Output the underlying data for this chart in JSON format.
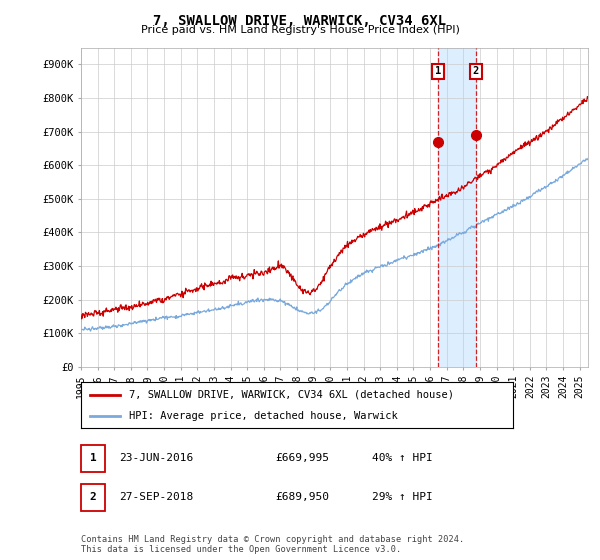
{
  "title": "7, SWALLOW DRIVE, WARWICK, CV34 6XL",
  "subtitle": "Price paid vs. HM Land Registry's House Price Index (HPI)",
  "ylabel_ticks": [
    "£0",
    "£100K",
    "£200K",
    "£300K",
    "£400K",
    "£500K",
    "£600K",
    "£700K",
    "£800K",
    "£900K"
  ],
  "ylim": [
    0,
    950000
  ],
  "xlim_start": 1995.0,
  "xlim_end": 2025.5,
  "hpi_color": "#7aaadd",
  "price_color": "#cc0000",
  "sale1_date_num": 2016.48,
  "sale1_price": 669995,
  "sale2_date_num": 2018.75,
  "sale2_price": 689950,
  "legend_label_price": "7, SWALLOW DRIVE, WARWICK, CV34 6XL (detached house)",
  "legend_label_hpi": "HPI: Average price, detached house, Warwick",
  "table_row1": [
    "1",
    "23-JUN-2016",
    "£669,995",
    "40% ↑ HPI"
  ],
  "table_row2": [
    "2",
    "27-SEP-2018",
    "£689,950",
    "29% ↑ HPI"
  ],
  "footer": "Contains HM Land Registry data © Crown copyright and database right 2024.\nThis data is licensed under the Open Government Licence v3.0.",
  "background_color": "#ffffff",
  "grid_color": "#cccccc",
  "shade_color": "#ddeeff"
}
